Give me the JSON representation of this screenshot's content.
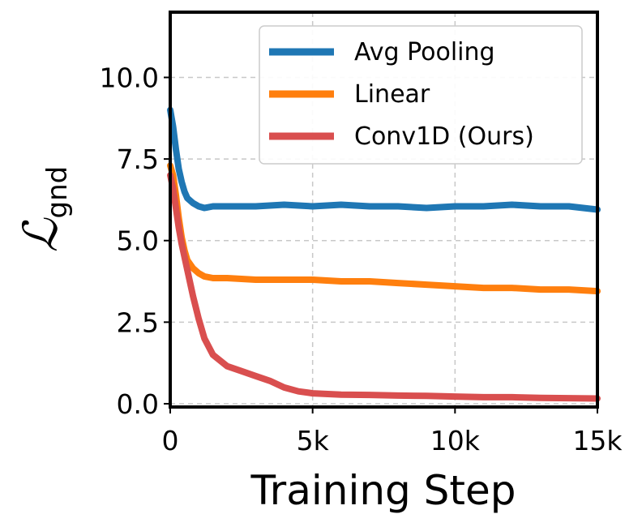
{
  "chart_data": {
    "type": "line",
    "title": "",
    "xlabel": "Training Step",
    "ylabel": "ℒ",
    "ylabel_subscript": "gnd",
    "xlim": [
      0,
      15000
    ],
    "ylim": [
      -0.1,
      12.0
    ],
    "x_ticks": [
      0,
      5000,
      10000,
      15000
    ],
    "x_tick_labels": [
      "0",
      "5k",
      "10k",
      "15k"
    ],
    "y_ticks": [
      0.0,
      2.5,
      5.0,
      7.5,
      10.0
    ],
    "y_tick_labels": [
      "0.0",
      "2.5",
      "5.0",
      "7.5",
      "10.0"
    ],
    "grid": true,
    "legend_position": "top-right",
    "series": [
      {
        "name": "Avg Pooling",
        "color": "#1f77b4",
        "x": [
          0,
          100,
          200,
          300,
          400,
          500,
          600,
          800,
          1000,
          1200,
          1500,
          2000,
          3000,
          4000,
          5000,
          6000,
          7000,
          8000,
          9000,
          10000,
          11000,
          12000,
          13000,
          14000,
          15000
        ],
        "y": [
          9.0,
          8.5,
          7.8,
          7.2,
          6.8,
          6.5,
          6.3,
          6.15,
          6.05,
          6.0,
          6.05,
          6.05,
          6.05,
          6.1,
          6.05,
          6.1,
          6.05,
          6.05,
          6.0,
          6.05,
          6.05,
          6.1,
          6.05,
          6.05,
          5.95
        ]
      },
      {
        "name": "Linear",
        "color": "#ff7f0e",
        "x": [
          0,
          100,
          200,
          300,
          400,
          500,
          600,
          800,
          1000,
          1200,
          1500,
          2000,
          3000,
          4000,
          5000,
          6000,
          7000,
          8000,
          9000,
          10000,
          11000,
          12000,
          13000,
          14000,
          15000
        ],
        "y": [
          7.3,
          7.0,
          6.4,
          5.7,
          5.1,
          4.7,
          4.4,
          4.15,
          4.0,
          3.9,
          3.85,
          3.85,
          3.8,
          3.8,
          3.8,
          3.75,
          3.75,
          3.7,
          3.65,
          3.6,
          3.55,
          3.55,
          3.5,
          3.5,
          3.45
        ]
      },
      {
        "name": "Conv1D (Ours)",
        "color": "#d94f4f",
        "x": [
          0,
          100,
          200,
          300,
          400,
          500,
          600,
          800,
          1000,
          1200,
          1500,
          2000,
          2500,
          3000,
          3500,
          4000,
          4500,
          5000,
          6000,
          7000,
          8000,
          9000,
          10000,
          11000,
          12000,
          13000,
          14000,
          15000
        ],
        "y": [
          7.0,
          6.6,
          6.0,
          5.4,
          4.9,
          4.5,
          4.1,
          3.3,
          2.6,
          2.0,
          1.5,
          1.15,
          1.0,
          0.85,
          0.7,
          0.5,
          0.38,
          0.32,
          0.28,
          0.27,
          0.25,
          0.24,
          0.22,
          0.2,
          0.2,
          0.18,
          0.17,
          0.16
        ]
      }
    ]
  }
}
